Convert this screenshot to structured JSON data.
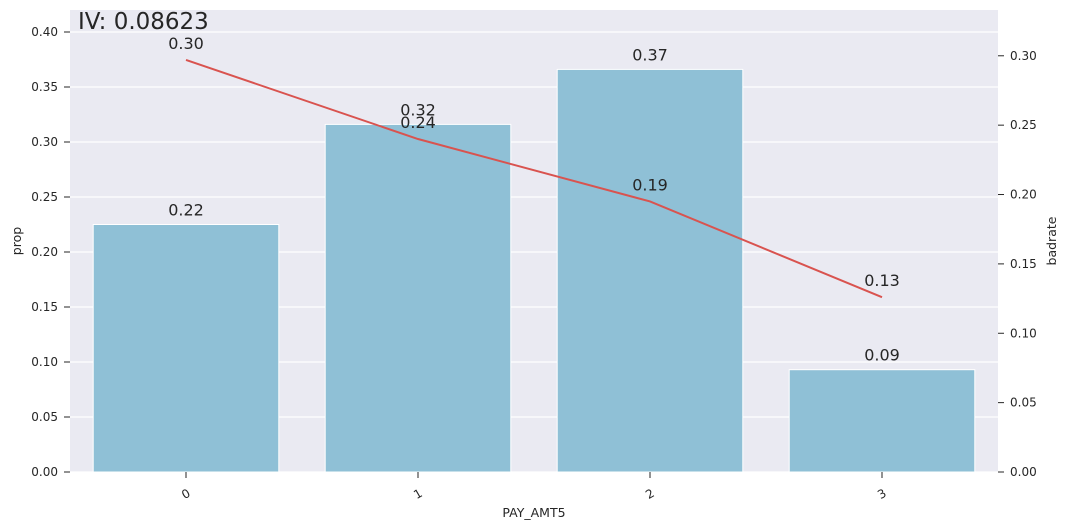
{
  "chart_data": {
    "type": "bar+line",
    "title": "IV: 0.08623",
    "xlabel": "PAY_AMT5",
    "ylabel_left": "prop",
    "ylabel_right": "badrate",
    "categories": [
      "0",
      "1",
      "2",
      "3"
    ],
    "bar_series": {
      "name": "prop",
      "values": [
        0.225,
        0.316,
        0.366,
        0.093
      ],
      "labels": [
        "0.22",
        "0.32",
        "0.37",
        "0.09"
      ],
      "color": "#8fc0d6"
    },
    "line_series": {
      "name": "badrate",
      "values": [
        0.297,
        0.24,
        0.195,
        0.126
      ],
      "labels": [
        "0.30",
        "0.24",
        "0.19",
        "0.13"
      ],
      "color": "#d9534f"
    },
    "ylim_left": [
      0,
      0.42
    ],
    "ylim_right": [
      0,
      0.333
    ],
    "yticks_left": [
      "0.00",
      "0.05",
      "0.10",
      "0.15",
      "0.20",
      "0.25",
      "0.30",
      "0.35",
      "0.40"
    ],
    "yticks_right": [
      "0.00",
      "0.05",
      "0.10",
      "0.15",
      "0.20",
      "0.25",
      "0.30"
    ],
    "grid": true,
    "background_color": "#eaeaf2"
  }
}
